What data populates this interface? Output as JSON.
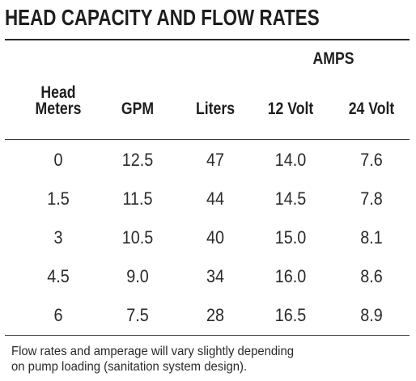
{
  "title": "HEAD CAPACITY AND FLOW RATES",
  "table": {
    "group_header": "AMPS",
    "columns": [
      {
        "line1": "Head",
        "line2": "Meters"
      },
      {
        "line1": "",
        "line2": "GPM"
      },
      {
        "line1": "",
        "line2": "Liters"
      },
      {
        "line1": "",
        "line2": "12 Volt"
      },
      {
        "line1": "",
        "line2": "24 Volt"
      }
    ],
    "rows": [
      [
        "0",
        "12.5",
        "47",
        "14.0",
        "7.6"
      ],
      [
        "1.5",
        "11.5",
        "44",
        "14.5",
        "7.8"
      ],
      [
        "3",
        "10.5",
        "40",
        "15.0",
        "8.1"
      ],
      [
        "4.5",
        "9.0",
        "34",
        "16.0",
        "8.6"
      ],
      [
        "6",
        "7.5",
        "28",
        "16.5",
        "8.9"
      ]
    ]
  },
  "note": {
    "line1": "Flow rates and amperage will vary slightly depending",
    "line2": "on pump loading (sanitation system design)."
  }
}
